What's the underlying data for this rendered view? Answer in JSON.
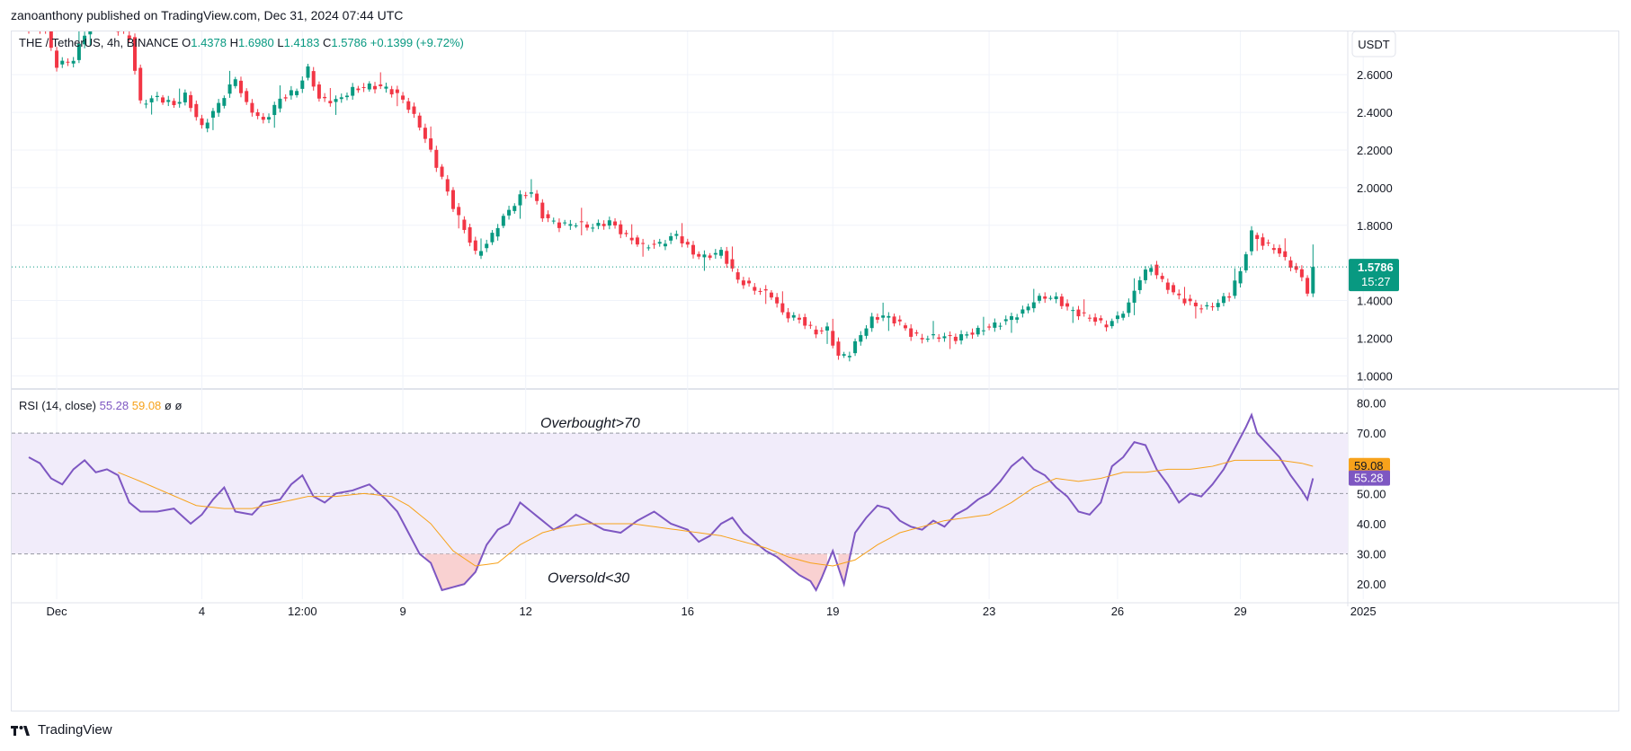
{
  "header": {
    "publisher_line": "zanoanthony published on TradingView.com, Dec 31, 2024 07:44 UTC"
  },
  "footer": {
    "brand": "TradingView",
    "logo_icon": "tradingview-logo-icon"
  },
  "colors": {
    "up": "#089981",
    "down": "#f23645",
    "rsi": "#7e57c2",
    "rsi_ma": "#f7a21b",
    "rsi_band_fill": "#f1ecfa",
    "oversold_fill": "#f7c6c6",
    "last_price_line": "#089981"
  },
  "chart_data": [
    {
      "type": "candlestick",
      "title": "THE / TetherUS, 4h, BINANCE",
      "ohlc_readout": {
        "o_label": "O",
        "o": "1.4378",
        "h_label": "H",
        "h": "1.6980",
        "l_label": "L",
        "l": "1.4183",
        "c_label": "C",
        "c": "1.5786",
        "change": "+0.1399 (+9.72%)"
      },
      "currency_button": "USDT",
      "y_ticks": [
        "2.6000",
        "2.4000",
        "2.2000",
        "2.0000",
        "1.8000",
        "1.4000",
        "1.2000",
        "1.0000"
      ],
      "y_tick_values": [
        2.6,
        2.4,
        2.2,
        2.0,
        1.8,
        1.4,
        1.2,
        1.0
      ],
      "ylim": [
        0.93,
        2.83
      ],
      "last_price": {
        "value": 1.5786,
        "label": "1.5786",
        "countdown": "15:27"
      },
      "x_ticks": [
        "Dec",
        "4",
        "12:00",
        "9",
        "12",
        "16",
        "19",
        "23",
        "26",
        "29",
        "2025"
      ],
      "x_tick_index": [
        5,
        31,
        49,
        67,
        89,
        118,
        144,
        172,
        195,
        217,
        239
      ],
      "bar_count": 231,
      "price_anchors": [
        [
          0,
          2.88
        ],
        [
          3,
          2.83
        ],
        [
          5,
          2.65
        ],
        [
          8,
          2.68
        ],
        [
          10,
          2.82
        ],
        [
          12,
          2.93
        ],
        [
          15,
          2.86
        ],
        [
          18,
          2.8
        ],
        [
          20,
          2.45
        ],
        [
          23,
          2.48
        ],
        [
          26,
          2.44
        ],
        [
          28,
          2.49
        ],
        [
          31,
          2.32
        ],
        [
          33,
          2.4
        ],
        [
          35,
          2.49
        ],
        [
          37,
          2.58
        ],
        [
          39,
          2.44
        ],
        [
          42,
          2.35
        ],
        [
          45,
          2.47
        ],
        [
          48,
          2.52
        ],
        [
          50,
          2.63
        ],
        [
          52,
          2.47
        ],
        [
          55,
          2.46
        ],
        [
          58,
          2.52
        ],
        [
          61,
          2.54
        ],
        [
          64,
          2.53
        ],
        [
          67,
          2.47
        ],
        [
          70,
          2.33
        ],
        [
          72,
          2.19
        ],
        [
          74,
          2.05
        ],
        [
          76,
          1.9
        ],
        [
          78,
          1.78
        ],
        [
          80,
          1.65
        ],
        [
          82,
          1.7
        ],
        [
          84,
          1.8
        ],
        [
          86,
          1.88
        ],
        [
          88,
          1.95
        ],
        [
          90,
          1.98
        ],
        [
          92,
          1.85
        ],
        [
          95,
          1.8
        ],
        [
          98,
          1.81
        ],
        [
          101,
          1.79
        ],
        [
          104,
          1.82
        ],
        [
          107,
          1.74
        ],
        [
          110,
          1.69
        ],
        [
          113,
          1.7
        ],
        [
          116,
          1.75
        ],
        [
          119,
          1.65
        ],
        [
          121,
          1.63
        ],
        [
          124,
          1.66
        ],
        [
          127,
          1.51
        ],
        [
          130,
          1.46
        ],
        [
          133,
          1.43
        ],
        [
          135,
          1.33
        ],
        [
          138,
          1.3
        ],
        [
          141,
          1.23
        ],
        [
          143,
          1.25
        ],
        [
          145,
          1.1
        ],
        [
          147,
          1.12
        ],
        [
          149,
          1.22
        ],
        [
          151,
          1.3
        ],
        [
          153,
          1.32
        ],
        [
          156,
          1.28
        ],
        [
          158,
          1.22
        ],
        [
          160,
          1.2
        ],
        [
          163,
          1.21
        ],
        [
          166,
          1.2
        ],
        [
          168,
          1.22
        ],
        [
          170,
          1.24
        ],
        [
          172,
          1.26
        ],
        [
          174,
          1.28
        ],
        [
          176,
          1.31
        ],
        [
          178,
          1.34
        ],
        [
          180,
          1.4
        ],
        [
          182,
          1.42
        ],
        [
          184,
          1.41
        ],
        [
          186,
          1.36
        ],
        [
          188,
          1.33
        ],
        [
          190,
          1.31
        ],
        [
          192,
          1.28
        ],
        [
          193,
          1.27
        ],
        [
          195,
          1.31
        ],
        [
          197,
          1.38
        ],
        [
          199,
          1.52
        ],
        [
          201,
          1.58
        ],
        [
          203,
          1.5
        ],
        [
          205,
          1.44
        ],
        [
          207,
          1.4
        ],
        [
          209,
          1.37
        ],
        [
          211,
          1.36
        ],
        [
          213,
          1.39
        ],
        [
          215,
          1.43
        ],
        [
          216,
          1.5
        ],
        [
          217,
          1.55
        ],
        [
          218,
          1.66
        ],
        [
          219,
          1.76
        ],
        [
          220,
          1.73
        ],
        [
          221,
          1.7
        ],
        [
          223,
          1.68
        ],
        [
          225,
          1.62
        ],
        [
          226,
          1.59
        ],
        [
          228,
          1.52
        ],
        [
          229,
          1.45
        ],
        [
          230,
          1.43
        ]
      ],
      "final_candle": {
        "open": 1.4378,
        "high": 1.698,
        "low": 1.4183,
        "close": 1.5786
      }
    },
    {
      "type": "line",
      "title": "RSI (14, close)",
      "legend": {
        "rsi_value": "55.28",
        "ma_value": "59.08",
        "extra1": "ø",
        "extra2": "ø"
      },
      "series": [
        {
          "name": "RSI",
          "color": "#7e57c2",
          "anchors": [
            [
              0,
              62
            ],
            [
              2,
              60
            ],
            [
              4,
              55
            ],
            [
              6,
              53
            ],
            [
              8,
              58
            ],
            [
              10,
              61
            ],
            [
              12,
              57
            ],
            [
              14,
              58
            ],
            [
              16,
              56
            ],
            [
              18,
              47
            ],
            [
              20,
              44
            ],
            [
              23,
              44
            ],
            [
              26,
              45
            ],
            [
              29,
              40
            ],
            [
              31,
              43
            ],
            [
              33,
              48
            ],
            [
              35,
              52
            ],
            [
              37,
              44
            ],
            [
              40,
              43
            ],
            [
              42,
              47
            ],
            [
              45,
              48
            ],
            [
              47,
              53
            ],
            [
              49,
              56
            ],
            [
              51,
              49
            ],
            [
              53,
              47
            ],
            [
              55,
              50
            ],
            [
              58,
              51
            ],
            [
              61,
              53
            ],
            [
              64,
              48
            ],
            [
              66,
              44
            ],
            [
              68,
              37
            ],
            [
              70,
              30
            ],
            [
              72,
              27
            ],
            [
              74,
              18
            ],
            [
              76,
              19
            ],
            [
              78,
              20
            ],
            [
              80,
              24
            ],
            [
              82,
              33
            ],
            [
              84,
              38
            ],
            [
              86,
              40
            ],
            [
              88,
              47
            ],
            [
              90,
              44
            ],
            [
              92,
              41
            ],
            [
              94,
              38
            ],
            [
              96,
              40
            ],
            [
              98,
              43
            ],
            [
              100,
              41
            ],
            [
              103,
              38
            ],
            [
              106,
              37
            ],
            [
              109,
              41
            ],
            [
              112,
              44
            ],
            [
              115,
              40
            ],
            [
              118,
              38
            ],
            [
              120,
              34
            ],
            [
              122,
              36
            ],
            [
              124,
              40
            ],
            [
              126,
              42
            ],
            [
              128,
              37
            ],
            [
              130,
              34
            ],
            [
              132,
              31
            ],
            [
              134,
              29
            ],
            [
              136,
              26
            ],
            [
              138,
              23
            ],
            [
              140,
              21
            ],
            [
              141,
              18
            ],
            [
              142,
              22
            ],
            [
              144,
              31
            ],
            [
              146,
              20
            ],
            [
              148,
              37
            ],
            [
              150,
              42
            ],
            [
              152,
              46
            ],
            [
              154,
              45
            ],
            [
              156,
              41
            ],
            [
              158,
              39
            ],
            [
              160,
              38
            ],
            [
              162,
              41
            ],
            [
              164,
              39
            ],
            [
              166,
              43
            ],
            [
              168,
              45
            ],
            [
              170,
              48
            ],
            [
              172,
              50
            ],
            [
              174,
              54
            ],
            [
              176,
              59
            ],
            [
              178,
              62
            ],
            [
              180,
              58
            ],
            [
              182,
              56
            ],
            [
              184,
              52
            ],
            [
              186,
              49
            ],
            [
              188,
              44
            ],
            [
              190,
              43
            ],
            [
              192,
              47
            ],
            [
              194,
              59
            ],
            [
              196,
              62
            ],
            [
              198,
              67
            ],
            [
              200,
              66
            ],
            [
              202,
              58
            ],
            [
              204,
              53
            ],
            [
              206,
              47
            ],
            [
              208,
              50
            ],
            [
              210,
              49
            ],
            [
              212,
              53
            ],
            [
              214,
              58
            ],
            [
              216,
              65
            ],
            [
              218,
              72
            ],
            [
              219,
              76
            ],
            [
              220,
              70
            ],
            [
              222,
              66
            ],
            [
              224,
              62
            ],
            [
              226,
              56
            ],
            [
              228,
              51
            ],
            [
              229,
              48
            ],
            [
              230,
              55
            ]
          ]
        },
        {
          "name": "RSI-based MA",
          "color": "#f7a21b",
          "anchors": [
            [
              16,
              57
            ],
            [
              20,
              54
            ],
            [
              25,
              50
            ],
            [
              30,
              46
            ],
            [
              35,
              45
            ],
            [
              40,
              45
            ],
            [
              45,
              47
            ],
            [
              50,
              49
            ],
            [
              55,
              49
            ],
            [
              60,
              50
            ],
            [
              65,
              49
            ],
            [
              68,
              46
            ],
            [
              72,
              40
            ],
            [
              76,
              31
            ],
            [
              80,
              26
            ],
            [
              84,
              27
            ],
            [
              88,
              33
            ],
            [
              92,
              37
            ],
            [
              96,
              39
            ],
            [
              100,
              40
            ],
            [
              104,
              40
            ],
            [
              108,
              40
            ],
            [
              112,
              39
            ],
            [
              116,
              38
            ],
            [
              120,
              37
            ],
            [
              124,
              36
            ],
            [
              128,
              34
            ],
            [
              132,
              32
            ],
            [
              136,
              29
            ],
            [
              140,
              27
            ],
            [
              144,
              26
            ],
            [
              148,
              28
            ],
            [
              152,
              33
            ],
            [
              156,
              37
            ],
            [
              160,
              39
            ],
            [
              164,
              41
            ],
            [
              168,
              42
            ],
            [
              172,
              43
            ],
            [
              176,
              47
            ],
            [
              180,
              52
            ],
            [
              184,
              55
            ],
            [
              188,
              54
            ],
            [
              192,
              55
            ],
            [
              196,
              57
            ],
            [
              200,
              57
            ],
            [
              204,
              58
            ],
            [
              208,
              58
            ],
            [
              212,
              59
            ],
            [
              216,
              61
            ],
            [
              220,
              61
            ],
            [
              224,
              61
            ],
            [
              228,
              60
            ],
            [
              230,
              59
            ]
          ]
        }
      ],
      "y_ticks": [
        "80.00",
        "70.00",
        "50.00",
        "40.00",
        "30.00",
        "20.00"
      ],
      "y_tick_values": [
        80,
        70,
        50,
        40,
        30,
        20
      ],
      "ylim": [
        15,
        84
      ],
      "levels": {
        "overbought": 70,
        "middle": 50,
        "oversold": 30
      },
      "annotations": {
        "overbought": "Overbought>70",
        "oversold": "Oversold<30"
      },
      "price_tags": {
        "ma": "59.08",
        "rsi": "55.28"
      }
    }
  ]
}
